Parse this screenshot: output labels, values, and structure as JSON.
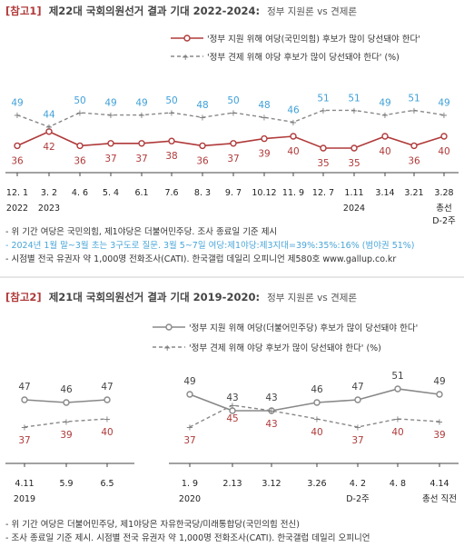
{
  "chart_data": [
    {
      "type": "line",
      "title_tag": "[참고1]",
      "title": "제22대 국회의원선거 결과 기대 2022-2024:",
      "subtitle": "정부 지원론 vs 견제론",
      "categories": [
        "12. 1",
        "3. 2",
        "4. 6",
        "5. 4",
        "6.1",
        "7.6",
        "8. 3",
        "9. 7",
        "10.12",
        "11. 9",
        "12. 7",
        "1.11",
        "3.14",
        "3.21",
        "3.28"
      ],
      "category_sublabels": {
        "0": "2022",
        "1": "2023",
        "11": "2024",
        "14": "총선\nD-2주"
      },
      "series": [
        {
          "name": "'정부 지원 위해 여당(국민의힘) 후보가 많이 당선돼야 한다'",
          "values": [
            36,
            42,
            36,
            37,
            37,
            38,
            36,
            37,
            39,
            40,
            35,
            35,
            40,
            36,
            40
          ],
          "color": "#b03a3a",
          "style": "solid"
        },
        {
          "name": "'정부 견제 위해 야당 후보가 많이 당선돼야 한다' (%)",
          "values": [
            49,
            44,
            50,
            49,
            49,
            50,
            48,
            50,
            48,
            46,
            51,
            51,
            49,
            51,
            49
          ],
          "color": "#888888",
          "label_color": "#3fa0d8",
          "style": "dashed"
        }
      ],
      "notes": [
        {
          "text": "- 위 기간 여당은 국민의힘, 제1야당은 더불어민주당. 조사 종료일 기준 제시",
          "color": "#333333"
        },
        {
          "text": "- 2024년 1월 말~3월 초는 3구도로 질문. 3월 5~7일 여당:제1야당:제3지대=39%:35%:16% (범야권 51%)",
          "color": "#4aa6d8"
        },
        {
          "text": "- 시점별 전국 유권자 약 1,000명 전화조사(CATI). 한국갤럽 데일리 오피니언 제580호 www.gallup.co.kr",
          "color": "#333333"
        }
      ]
    },
    {
      "type": "line",
      "title_tag": "[참고2]",
      "title": "제21대 국회의원선거 결과 기대 2019-2020:",
      "subtitle": "정부 지원론 vs 견제론",
      "categories": [
        "4.11",
        "5.9",
        "6.5",
        "1. 9",
        "2.13",
        "3.12",
        "3.26",
        "4. 2",
        "4. 8",
        "4.14"
      ],
      "category_sublabels": {
        "0": "2019",
        "3": "2020",
        "7": "D-2주",
        "9": "총선 직전"
      },
      "series": [
        {
          "name": "'정부 지원 위해 여당(더불어민주당) 후보가 많이 당선돼야 한다'",
          "values": [
            47,
            46,
            47,
            49,
            43,
            43,
            46,
            47,
            51,
            49
          ],
          "color": "#888888",
          "label_color": "#444444",
          "style": "solid"
        },
        {
          "name": "'정부 견제 위해 야당 후보가 많이 당선돼야 한다' (%)",
          "values": [
            37,
            39,
            40,
            37,
            45,
            43,
            40,
            37,
            40,
            39
          ],
          "color": "#888888",
          "label_color": "#b03a3a",
          "style": "dashed"
        }
      ],
      "notes": [
        {
          "text": "- 위 기간 여당은 더불어민주당, 제1야당은 자유한국당/미래통합당(국민의힘 전신)",
          "color": "#333333"
        },
        {
          "text": "- 조사 종료일 기준 제시. 시점별 전국 유권자 약 1,000명 전화조사(CATI). 한국갤럽 데일리 오피니언",
          "color": "#333333"
        }
      ]
    }
  ]
}
